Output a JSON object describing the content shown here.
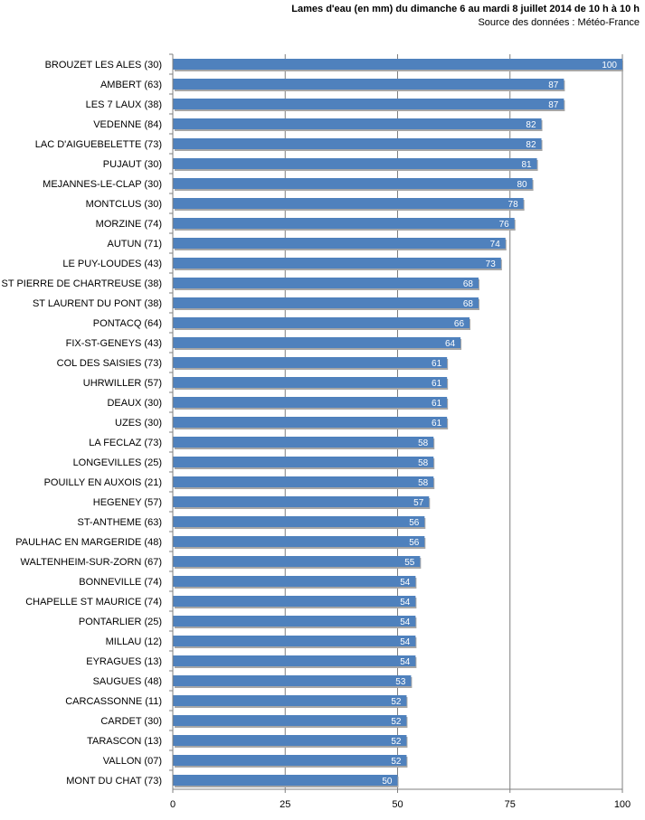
{
  "chart_data": {
    "type": "bar",
    "orientation": "horizontal",
    "title": "Lames d'eau (en mm) du dimanche  6 au mardi 8 juillet  2014 de 10 h à 10 h",
    "subtitle": "Source des données : Météo-France",
    "xlabel": "",
    "ylabel": "",
    "xlim": [
      0,
      100
    ],
    "ticks": [
      "0",
      "25",
      "50",
      "75",
      "100"
    ],
    "grid": true,
    "legend": "none",
    "colors": {
      "bar": "#4f81bd",
      "bar_shadow": "#a6a6a6",
      "grid": "#7f7f7f",
      "axis": "#7f7f7f"
    },
    "categories": [
      "BROUZET LES ALES (30)",
      "AMBERT (63)",
      "LES 7 LAUX (38)",
      "VEDENNE (84)",
      "LAC D'AIGUEBELETTE (73)",
      "PUJAUT (30)",
      "MEJANNES-LE-CLAP (30)",
      "MONTCLUS (30)",
      "MORZINE (74)",
      "AUTUN (71)",
      "LE PUY-LOUDES (43)",
      "ST PIERRE DE CHARTREUSE (38)",
      "ST LAURENT DU PONT (38)",
      "PONTACQ (64)",
      "FIX-ST-GENEYS (43)",
      "COL DES SAISIES (73)",
      "UHRWILLER (57)",
      "DEAUX (30)",
      "UZES (30)",
      "LA FECLAZ (73)",
      "LONGEVILLES (25)",
      "POUILLY EN AUXOIS (21)",
      "HEGENEY (57)",
      "ST-ANTHEME (63)",
      "PAULHAC EN MARGERIDE (48)",
      "WALTENHEIM-SUR-ZORN (67)",
      "BONNEVILLE (74)",
      "CHAPELLE ST MAURICE (74)",
      "PONTARLIER (25)",
      "MILLAU (12)",
      "EYRAGUES (13)",
      "SAUGUES (48)",
      "CARCASSONNE (11)",
      "CARDET (30)",
      "TARASCON (13)",
      "VALLON (07)",
      "MONT DU CHAT (73)"
    ],
    "values": [
      100,
      87,
      87,
      82,
      82,
      81,
      80,
      78,
      76,
      74,
      73,
      68,
      68,
      66,
      64,
      61,
      61,
      61,
      61,
      58,
      58,
      58,
      57,
      56,
      56,
      55,
      54,
      54,
      54,
      54,
      54,
      53,
      52,
      52,
      52,
      52,
      50
    ]
  }
}
